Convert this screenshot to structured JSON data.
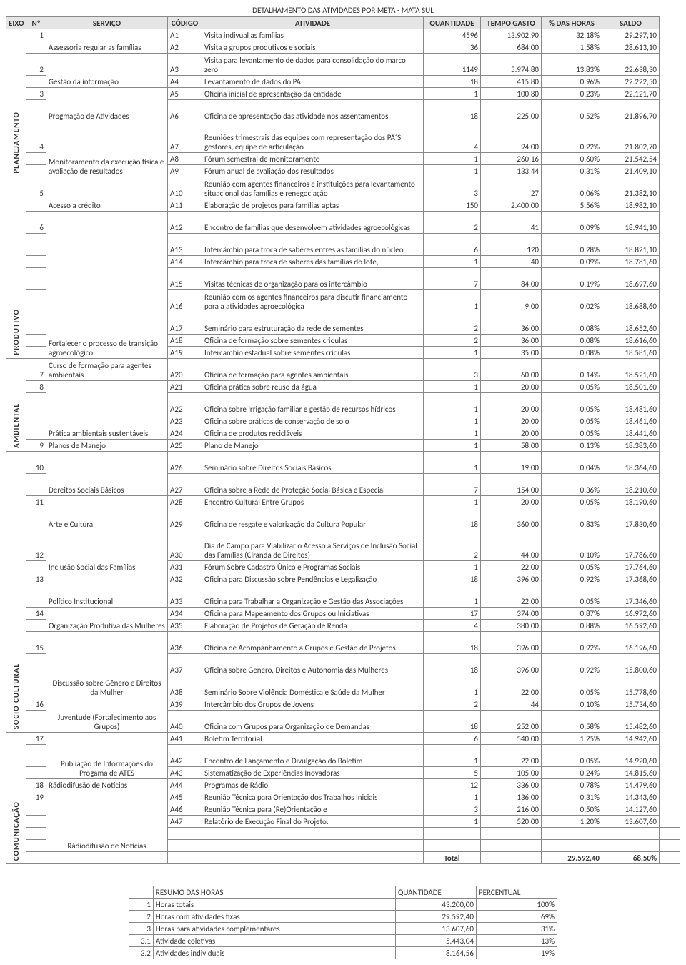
{
  "title": "DETALHAMENTO DAS ATIVIDADES POR META - MATA SUL",
  "headers": {
    "eixo": "EIXO",
    "num": "Nº",
    "servico": "SERVIÇO",
    "codigo": "CÓDIGO",
    "atividade": "ATIVIDADE",
    "quantidade": "QUANTIDADE",
    "tempo": "TEMPO GASTO",
    "pct": "% DAS HORAS",
    "saldo": "SALDO"
  },
  "eixos": [
    "PLANEJAMENTO",
    "PRODUTIVO",
    "AMBIENTAL",
    "SOCIO CULTURAL",
    "COMUNICAÇÃO"
  ],
  "servicos": {
    "s1": "Assessoria regular as famílias",
    "s2": "Gestão da informação",
    "s3": " ",
    "s3b": "Progmação de Atividades",
    "s4": "Monitoramento da execução física e avaliação de resultados",
    "s5": "Acesso a crédito",
    "s6": " ",
    "s6b": "Fortalecer o processo de transição agroecológico",
    "s7": "Curso de formação para agentes ambientais",
    "s8": " ",
    "s8b": "Prática ambientais sustentáveis",
    "s9": "Planos de Manejo",
    "s10": "Dereitos Sociais Básicos",
    "s11": " ",
    "s11b": "Arte e Cultura",
    "s12": "Inclusão Social das Famílias",
    "s13": " ",
    "s13b": "Político Institucional",
    "s14": "Organização Produtiva das Mulheres",
    "s15": " ",
    "s15b": "Discussão sobre Gênero e Direitos da Mulher",
    "s16": "Juventude (Fortalecimento aos Grupos)",
    "s17": " ",
    "s17b": "Publiação de Informações do Progama de ATES",
    "s18": "Rádiodifusão de Notícias",
    "s19": " ",
    "s19b": "Rádiodifusão de Notícias"
  },
  "rows": [
    {
      "cod": "A1",
      "ativ": "Visita indivual as famílias",
      "qtd": "4596",
      "tempo": "13.902,90",
      "pct": "32,18%",
      "saldo": "29.297,10"
    },
    {
      "cod": "A2",
      "ativ": "Visita a grupos produtivos e sociais",
      "qtd": "36",
      "tempo": "684,00",
      "pct": "1,58%",
      "saldo": "28.613,10"
    },
    {
      "cod": "A3",
      "ativ": "Visita para levantamento de dados para consolidação do marco zero",
      "qtd": "1149",
      "tempo": "5.974,80",
      "pct": "13,83%",
      "saldo": "22.638,30"
    },
    {
      "cod": "A4",
      "ativ": "Levantamento de dados do PA",
      "qtd": "18",
      "tempo": "415,80",
      "pct": "0,96%",
      "saldo": "22.222,50"
    },
    {
      "cod": "A5",
      "ativ": "Oficina inicial de apresentação da entidade",
      "qtd": "1",
      "tempo": "100,80",
      "pct": "0,23%",
      "saldo": "22.121,70"
    },
    {
      "cod": "A6",
      "ativ": "Oficina de apresentação das atividade nos assentamentos",
      "qtd": "18",
      "tempo": "225,00",
      "pct": "0,52%",
      "saldo": "21.896,70"
    },
    {
      "cod": "A7",
      "ativ": "Reuniões trimestrais das equipes com representação dos PA´S gestores, equipe de articulação",
      "qtd": "4",
      "tempo": "94,00",
      "pct": "0,22%",
      "saldo": "21.802,70"
    },
    {
      "cod": "A8",
      "ativ": "Fórum semestral de monitoramento",
      "qtd": "1",
      "tempo": "260,16",
      "pct": "0,60%",
      "saldo": "21.542,54"
    },
    {
      "cod": "A9",
      "ativ": "Fórum anual de avaliação dos resultados",
      "qtd": "1",
      "tempo": "133,44",
      "pct": "0,31%",
      "saldo": "21.409,10"
    },
    {
      "cod": "A10",
      "ativ": "Reunião com agentes financeiros e instituições para levantamento situacional das famílias e renegociação",
      "qtd": "3",
      "tempo": "27",
      "pct": "0,06%",
      "saldo": "21.382,10"
    },
    {
      "cod": "A11",
      "ativ": "Elaboração de projetos para famílias aptas",
      "qtd": "150",
      "tempo": "2.400,00",
      "pct": "5,56%",
      "saldo": "18.982,10"
    },
    {
      "cod": "A12",
      "ativ": "Encontro de famílias que desenvolvem atividades agroecológicas",
      "qtd": "2",
      "tempo": "41",
      "pct": "0,09%",
      "saldo": "18.941,10"
    },
    {
      "cod": "A13",
      "ativ": "Intercâmbio para troca de saberes entres as famílias do núcleo",
      "qtd": "6",
      "tempo": "120",
      "pct": "0,28%",
      "saldo": "18.821,10"
    },
    {
      "cod": "A14",
      "ativ": "Intercâmbio para troca de saberes das famílias do lote,",
      "qtd": "1",
      "tempo": "40",
      "pct": "0,09%",
      "saldo": "18.781,60"
    },
    {
      "cod": "A15",
      "ativ": "Visitas técnicas de organização para os intercâmbio",
      "qtd": "7",
      "tempo": "84,00",
      "pct": "0,19%",
      "saldo": "18.697,60"
    },
    {
      "cod": "A16",
      "ativ": "Reunião com os agentes financeiros para discutir financiamento para a atividades agroecológica",
      "qtd": "1",
      "tempo": "9,00",
      "pct": "0,02%",
      "saldo": "18.688,60"
    },
    {
      "cod": "A17",
      "ativ": "Seminário para estruturação da rede de sementes",
      "qtd": "2",
      "tempo": "36,00",
      "pct": "0,08%",
      "saldo": "18.652,60"
    },
    {
      "cod": "A18",
      "ativ": "Oficina de formação sobre sementes crioulas",
      "qtd": "2",
      "tempo": "36,00",
      "pct": "0,08%",
      "saldo": "18.616,60"
    },
    {
      "cod": "A19",
      "ativ": "Intercambio estadual sobre sementes crioulas",
      "qtd": "1",
      "tempo": "35,00",
      "pct": "0,08%",
      "saldo": "18.581,60"
    },
    {
      "cod": "A20",
      "ativ": "Oficina de formação para agentes ambientais",
      "qtd": "3",
      "tempo": "60,00",
      "pct": "0,14%",
      "saldo": "18.521,60"
    },
    {
      "cod": "A21",
      "ativ": "Oficina prática sobre reuso da água",
      "qtd": "1",
      "tempo": "20,00",
      "pct": "0,05%",
      "saldo": "18.501,60"
    },
    {
      "cod": "A22",
      "ativ": "Oficina sobre irrigação familiar e gestão de recursos hídricos",
      "qtd": "1",
      "tempo": "20,00",
      "pct": "0,05%",
      "saldo": "18.481,60"
    },
    {
      "cod": "A23",
      "ativ": "Oficina sobre práticas de conservação de solo",
      "qtd": "1",
      "tempo": "20,00",
      "pct": "0,05%",
      "saldo": "18.461,60"
    },
    {
      "cod": "A24",
      "ativ": "Oficina de produtos recicláveis",
      "qtd": "1",
      "tempo": "20,00",
      "pct": "0,05%",
      "saldo": "18.441,60"
    },
    {
      "cod": "A25",
      "ativ": "Plano de Manejo",
      "qtd": "1",
      "tempo": "58,00",
      "pct": "0,13%",
      "saldo": "18.383,60"
    },
    {
      "cod": "A26",
      "ativ": "Seminário sobre Direitos Sociais Básicos",
      "qtd": "1",
      "tempo": "19,00",
      "pct": "0,04%",
      "saldo": "18.364,60"
    },
    {
      "cod": "A27",
      "ativ": "Oficina sobre a Rede de Proteção Social Básica e Especial",
      "qtd": "7",
      "tempo": "154,00",
      "pct": "0,36%",
      "saldo": "18.210,60"
    },
    {
      "cod": "A28",
      "ativ": "Encontro Cultural Entre Grupos",
      "qtd": "1",
      "tempo": "20,00",
      "pct": "0,05%",
      "saldo": "18.190,60"
    },
    {
      "cod": "A29",
      "ativ": " Oficina de  resgate e valorização da Cultura Popular",
      "qtd": "18",
      "tempo": "360,00",
      "pct": "0,83%",
      "saldo": "17.830,60"
    },
    {
      "cod": "A30",
      "ativ": " Dia de Campo para Viabilizar o Acesso a Serviços de Inclusão Social das Famílias (Ciranda de Direitos)",
      "qtd": "2",
      "tempo": "44,00",
      "pct": "0,10%",
      "saldo": "17.786,60"
    },
    {
      "cod": "A31",
      "ativ": "Fórum Sobre Cadastro Único e Programas Sociais",
      "qtd": "1",
      "tempo": "22,00",
      "pct": "0,05%",
      "saldo": "17.764,60"
    },
    {
      "cod": "A32",
      "ativ": "Oficina para Discussão sobre Pendências e Legalização",
      "qtd": "18",
      "tempo": "396,00",
      "pct": "0,92%",
      "saldo": "17.368,60"
    },
    {
      "cod": "A33",
      "ativ": "Oficina para Trabalhar a Organização e Gestão das Associações",
      "qtd": "1",
      "tempo": "22,00",
      "pct": "0,05%",
      "saldo": "17.346,60"
    },
    {
      "cod": "A34",
      "ativ": "Oficina para Mapeamento dos Grupos ou Iniciativas",
      "qtd": "17",
      "tempo": "374,00",
      "pct": "0,87%",
      "saldo": "16.972,60"
    },
    {
      "cod": "A35",
      "ativ": "Elaboração de Projetos de Geração de Renda",
      "qtd": "4",
      "tempo": "380,00",
      "pct": "0,88%",
      "saldo": "16.592,60"
    },
    {
      "cod": "A36",
      "ativ": "Oficina de Acompanhamento a Grupos e Gestão de Projetos",
      "qtd": "18",
      "tempo": "396,00",
      "pct": "0,92%",
      "saldo": "16.196,60"
    },
    {
      "cod": "A37",
      "ativ": "Oficina sobre Genero, Direitos e Autonomia das Mulheres",
      "qtd": "18",
      "tempo": "396,00",
      "pct": "0,92%",
      "saldo": "15.800,60"
    },
    {
      "cod": "A38",
      "ativ": "Seminário Sobre Violência Doméstica e Saúde da Mulher",
      "qtd": "1",
      "tempo": "22,00",
      "pct": "0,05%",
      "saldo": "15.778,60"
    },
    {
      "cod": "A39",
      "ativ": "Intercâmbio dos Grupos de Jovens",
      "qtd": "2",
      "tempo": "44",
      "pct": "0,10%",
      "saldo": "15.734,60"
    },
    {
      "cod": "A40",
      "ativ": "Oficina com Grupos para Organização de Demandas",
      "qtd": "18",
      "tempo": "252,00",
      "pct": "0,58%",
      "saldo": "15.482,60"
    },
    {
      "cod": "A41",
      "ativ": "Boletim Territorial",
      "qtd": "6",
      "tempo": "540,00",
      "pct": "1,25%",
      "saldo": "14.942,60"
    },
    {
      "cod": "A42",
      "ativ": "Encontro de Lançamento e Divulgação do Boletim",
      "qtd": "1",
      "tempo": "22,00",
      "pct": "0,05%",
      "saldo": "14.920,60"
    },
    {
      "cod": "A43",
      "ativ": "Sistematização de Experiências Inovadoras",
      "qtd": "5",
      "tempo": "105,00",
      "pct": "0,24%",
      "saldo": "14.815,60"
    },
    {
      "cod": "A44",
      "ativ": "Programas de Rádio",
      "qtd": "12",
      "tempo": "336,00",
      "pct": "0,78%",
      "saldo": "14.479,60"
    },
    {
      "cod": "A45",
      "ativ": "Reunião Técnica para Orientação dos Trabalhos Iniciais",
      "qtd": "1",
      "tempo": "136,00",
      "pct": "0,31%",
      "saldo": "14.343,60"
    },
    {
      "cod": "A46",
      "ativ": "Reunião Técnica para (Re)Orientação e",
      "qtd": "3",
      "tempo": "216,00",
      "pct": "0,50%",
      "saldo": "14.127,60"
    },
    {
      "cod": "A47",
      "ativ": "Relatório de Execução Final do Projeto.",
      "qtd": "1",
      "tempo": "520,00",
      "pct": "1,20%",
      "saldo": "13.607,60"
    }
  ],
  "total": {
    "label": "Total",
    "tempo": "29.592,40",
    "pct": "68,50%"
  },
  "summary": {
    "title": "RESUMO DAS HORAS",
    "h_qtd": "QUANTIDADE",
    "h_pct": "PERCENTUAL",
    "rows": [
      {
        "n": "1",
        "label": "Horas totais",
        "qtd": "43.200,00",
        "pct": "100%"
      },
      {
        "n": "2",
        "label": "Horas com atividades fixas",
        "qtd": "29.592,40",
        "pct": "69%"
      },
      {
        "n": "3",
        "label": "Horas para atividades complementares",
        "qtd": "13.607,60",
        "pct": "31%"
      },
      {
        "n": "3.1",
        "label": "Atividade coletivas",
        "qtd": "5.443,04",
        "pct": "13%"
      },
      {
        "n": "3.2",
        "label": "Atividades individuais",
        "qtd": "8.164,56",
        "pct": "19%"
      }
    ]
  }
}
